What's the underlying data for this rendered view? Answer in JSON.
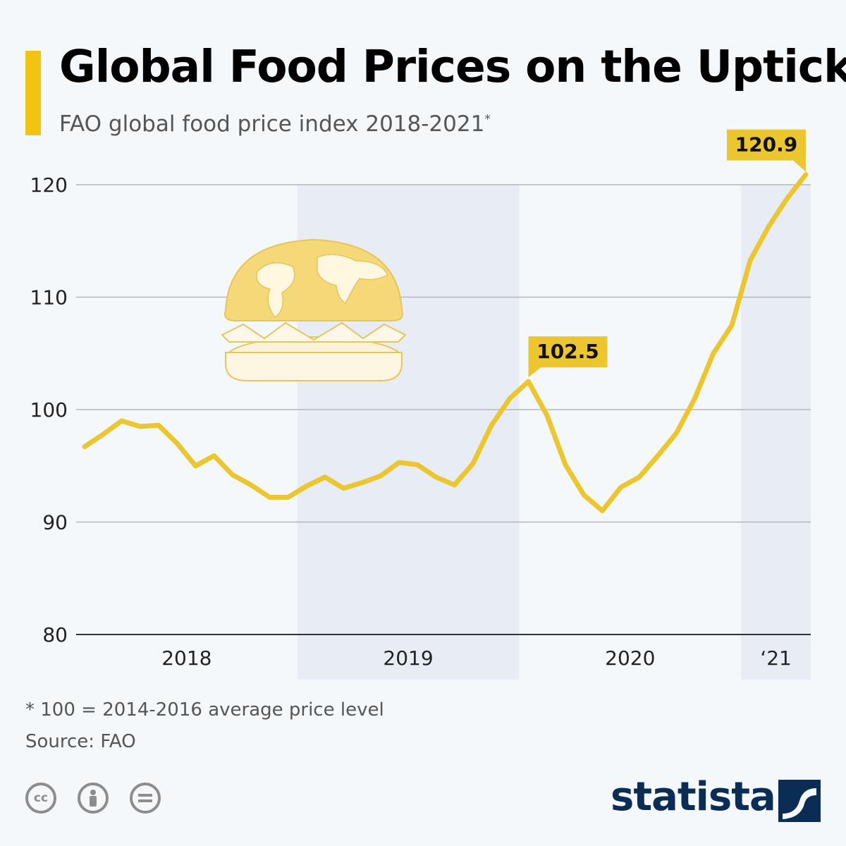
{
  "header": {
    "title": "Global Food Prices on the Uptick",
    "subtitle": "FAO global food price index 2018-2021",
    "subtitle_mark": "*"
  },
  "colors": {
    "accent": "#f1c40f",
    "line": "#ebc62f",
    "callout": "#ebc62f",
    "band": "#e8edf5",
    "grid": "#b6b6b6",
    "brand": "#0b2d55"
  },
  "chart_data": {
    "type": "line",
    "title": "Global Food Prices on the Uptick",
    "subtitle": "FAO global food price index 2018-2021*",
    "ylim": [
      80,
      122
    ],
    "yticks": [
      80,
      90,
      100,
      110,
      120
    ],
    "grid": true,
    "x": [
      "2018-01",
      "2018-02",
      "2018-03",
      "2018-04",
      "2018-05",
      "2018-06",
      "2018-07",
      "2018-08",
      "2018-09",
      "2018-10",
      "2018-11",
      "2018-12",
      "2019-01",
      "2019-02",
      "2019-03",
      "2019-04",
      "2019-05",
      "2019-06",
      "2019-07",
      "2019-08",
      "2019-09",
      "2019-10",
      "2019-11",
      "2019-12",
      "2020-01",
      "2020-02",
      "2020-03",
      "2020-04",
      "2020-05",
      "2020-06",
      "2020-07",
      "2020-08",
      "2020-09",
      "2020-10",
      "2020-11",
      "2020-12",
      "2021-01",
      "2021-02",
      "2021-03",
      "2021-04"
    ],
    "values": [
      96.7,
      97.8,
      99.0,
      98.5,
      98.6,
      97.0,
      95.0,
      95.9,
      94.2,
      93.3,
      92.2,
      92.2,
      93.2,
      94.0,
      93.0,
      93.5,
      94.1,
      95.3,
      95.1,
      94.0,
      93.3,
      95.2,
      98.6,
      101.0,
      102.5,
      99.5,
      95.1,
      92.4,
      91.0,
      93.1,
      94.0,
      95.9,
      97.9,
      101.0,
      105.0,
      107.5,
      113.3,
      116.3,
      118.8,
      120.9
    ],
    "x_groups": [
      {
        "label": "2018",
        "from": "2018-01",
        "to": "2018-12",
        "shaded": false
      },
      {
        "label": "2019",
        "from": "2019-01",
        "to": "2019-12",
        "shaded": true
      },
      {
        "label": "2020",
        "from": "2020-01",
        "to": "2020-12",
        "shaded": false
      },
      {
        "label": "‘21",
        "from": "2021-01",
        "to": "2021-04",
        "shaded": true
      }
    ],
    "annotations": [
      {
        "x": "2020-01",
        "value": 102.5,
        "label": "102.5"
      },
      {
        "x": "2021-04",
        "value": 120.9,
        "label": "120.9"
      }
    ]
  },
  "footer": {
    "footnote": "* 100 = 2014-2016 average price level",
    "source": "Source: FAO",
    "license_icons": [
      "cc-icon",
      "attribution-icon",
      "no-derivatives-icon"
    ],
    "brand": "statista"
  }
}
